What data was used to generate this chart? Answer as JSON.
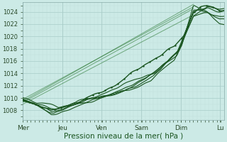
{
  "title": "Pression niveau de la mer( hPa )",
  "bg_color": "#cceae6",
  "grid_color_major": "#a8ccc8",
  "grid_color_minor": "#c0deda",
  "line_color_dark": "#1a5520",
  "line_color_light": "#2d7a35",
  "ylim": [
    1006.5,
    1025.5
  ],
  "yticks": [
    1008,
    1010,
    1012,
    1014,
    1016,
    1018,
    1020,
    1022,
    1024
  ],
  "x_labels": [
    "Mer",
    "Jeu",
    "Ven",
    "Sam",
    "Dim",
    "Lu"
  ],
  "x_positions": [
    0.0,
    0.167,
    0.333,
    0.5,
    0.667,
    0.833
  ],
  "total_points": 300
}
